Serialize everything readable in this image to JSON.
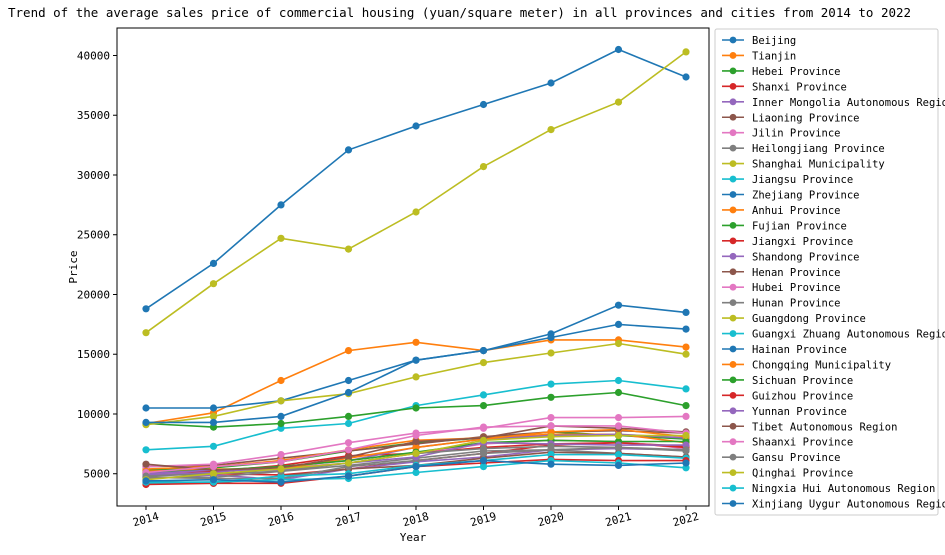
{
  "chart_data": {
    "type": "line",
    "title": "Trend of the average sales price of commercial housing (yuan/square meter) in all provinces and cities from 2014 to 2022",
    "xlabel": "Year",
    "ylabel": "Price",
    "x": [
      "2014",
      "2015",
      "2016",
      "2017",
      "2018",
      "2019",
      "2020",
      "2021",
      "2022"
    ],
    "ylim": [
      2300,
      42300
    ],
    "yticks": [
      5000,
      10000,
      15000,
      20000,
      25000,
      30000,
      35000,
      40000
    ],
    "grid": false,
    "legend_position": "right, outside plot",
    "series": [
      {
        "name": "Beijing",
        "color": "#1f77b4",
        "values": [
          18800,
          22600,
          27500,
          32100,
          34100,
          35900,
          37700,
          40500,
          38200
        ]
      },
      {
        "name": "Tianjin",
        "color": "#ff7f0e",
        "values": [
          9200,
          10100,
          12800,
          15300,
          16000,
          15300,
          16200,
          16200,
          15600
        ]
      },
      {
        "name": "Hebei Province",
        "color": "#2ca02c",
        "values": [
          5300,
          5500,
          6000,
          6900,
          7600,
          8000,
          8500,
          8200,
          7900
        ]
      },
      {
        "name": "Shanxi Province",
        "color": "#d62728",
        "values": [
          5100,
          5000,
          4900,
          5400,
          6100,
          6700,
          7400,
          7600,
          7300
        ]
      },
      {
        "name": "Inner Mongolia Autonomous Region",
        "color": "#9467bd",
        "values": [
          4600,
          4900,
          4500,
          5400,
          6000,
          6400,
          7000,
          7100,
          7000
        ]
      },
      {
        "name": "Liaoning Province",
        "color": "#8c564b",
        "values": [
          5600,
          5700,
          6300,
          6900,
          7500,
          8100,
          8500,
          8600,
          8400
        ]
      },
      {
        "name": "Jilin Province",
        "color": "#e377c2",
        "values": [
          5000,
          5200,
          5500,
          5900,
          6700,
          7500,
          7800,
          7700,
          7100
        ]
      },
      {
        "name": "Heilongjiang Province",
        "color": "#7f7f7f",
        "values": [
          4700,
          4700,
          5200,
          5700,
          6300,
          6900,
          7000,
          6700,
          6400
        ]
      },
      {
        "name": "Shanghai Municipality",
        "color": "#bcbd22",
        "values": [
          16800,
          20900,
          24700,
          23800,
          26900,
          30700,
          33800,
          36100,
          40300
        ]
      },
      {
        "name": "Jiangsu Province",
        "color": "#17becf",
        "values": [
          7000,
          7300,
          8800,
          9200,
          10700,
          11600,
          12500,
          12800,
          12100
        ]
      },
      {
        "name": "Zhejiang Province",
        "color": "#1f77b4",
        "values": [
          10500,
          10500,
          11100,
          12800,
          14500,
          15300,
          16700,
          19100,
          18500
        ]
      },
      {
        "name": "Anhui Province",
        "color": "#ff7f0e",
        "values": [
          5400,
          5600,
          6100,
          7000,
          7800,
          8000,
          8300,
          8300,
          7600
        ]
      },
      {
        "name": "Fujian Province",
        "color": "#2ca02c",
        "values": [
          9200,
          8900,
          9200,
          9800,
          10500,
          10700,
          11400,
          11800,
          10700
        ]
      },
      {
        "name": "Jiangxi Province",
        "color": "#d62728",
        "values": [
          5100,
          5200,
          5700,
          6500,
          6700,
          7200,
          7500,
          7600,
          7200
        ]
      },
      {
        "name": "Shandong Province",
        "color": "#9467bd",
        "values": [
          4900,
          5100,
          5600,
          6100,
          7200,
          7900,
          8200,
          8300,
          8000
        ]
      },
      {
        "name": "Henan Province",
        "color": "#8c564b",
        "values": [
          4400,
          4200,
          4800,
          5400,
          5700,
          6300,
          6800,
          6700,
          6400
        ]
      },
      {
        "name": "Hubei Province",
        "color": "#e377c2",
        "values": [
          5600,
          5800,
          6600,
          7600,
          8400,
          8800,
          9700,
          9700,
          9800
        ]
      },
      {
        "name": "Hunan Province",
        "color": "#7f7f7f",
        "values": [
          4700,
          4600,
          4600,
          5600,
          6100,
          6700,
          7000,
          7200,
          6900
        ]
      },
      {
        "name": "Guangdong Province",
        "color": "#bcbd22",
        "values": [
          9100,
          9800,
          11100,
          11700,
          13100,
          14300,
          15100,
          15900,
          15000
        ]
      },
      {
        "name": "Guangxi Zhuang Autonomous Region",
        "color": "#17becf",
        "values": [
          4200,
          4300,
          4800,
          5000,
          5700,
          6100,
          6600,
          6600,
          6300
        ]
      },
      {
        "name": "Hainan Province",
        "color": "#1f77b4",
        "values": [
          9300,
          9300,
          9800,
          11800,
          14500,
          15300,
          16400,
          17500,
          17100
        ]
      },
      {
        "name": "Chongqing Municipality",
        "color": "#ff7f0e",
        "values": [
          5200,
          5400,
          5400,
          6300,
          7200,
          7900,
          8500,
          8700,
          8100
        ]
      },
      {
        "name": "Sichuan Province",
        "color": "#2ca02c",
        "values": [
          5100,
          5300,
          5600,
          6100,
          6800,
          7600,
          7800,
          7700,
          7700
        ]
      },
      {
        "name": "Guizhou Province",
        "color": "#d62728",
        "values": [
          4100,
          4200,
          4200,
          4800,
          5600,
          5900,
          6200,
          6100,
          6100
        ]
      },
      {
        "name": "Yunnan Province",
        "color": "#9467bd",
        "values": [
          5000,
          5300,
          5300,
          5900,
          6400,
          7600,
          7500,
          7400,
          7400
        ]
      },
      {
        "name": "Tibet Autonomous Region",
        "color": "#8c564b",
        "values": [
          5800,
          5300,
          5500,
          6400,
          7700,
          8000,
          9000,
          8800,
          8500
        ]
      },
      {
        "name": "Shaanxi Province",
        "color": "#e377c2",
        "values": [
          5100,
          5600,
          6000,
          7000,
          8200,
          8900,
          9000,
          9000,
          8400
        ]
      },
      {
        "name": "Gansu Province",
        "color": "#7f7f7f",
        "values": [
          4800,
          5000,
          5200,
          5900,
          6700,
          7100,
          7300,
          7200,
          7000
        ]
      },
      {
        "name": "Qinghai Province",
        "color": "#bcbd22",
        "values": [
          4500,
          5000,
          5400,
          5900,
          6700,
          7800,
          8100,
          8200,
          8200
        ]
      },
      {
        "name": "Ningxia Hui Autonomous Region",
        "color": "#17becf",
        "values": [
          4300,
          4300,
          4500,
          4600,
          5100,
          5600,
          6100,
          5900,
          5500
        ]
      },
      {
        "name": "Xinjiang Uygur Autonomous Region",
        "color": "#1f77b4",
        "values": [
          4400,
          4500,
          4300,
          4800,
          5600,
          6100,
          5800,
          5700,
          5900
        ]
      }
    ]
  }
}
